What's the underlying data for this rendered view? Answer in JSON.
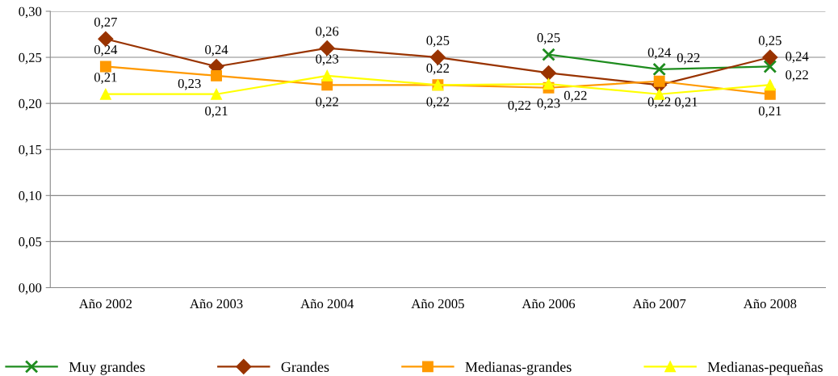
{
  "chart_data": {
    "type": "line",
    "categories": [
      "Año 2002",
      "Año 2003",
      "Año 2004",
      "Año 2005",
      "Año 2006",
      "Año 2007",
      "Año 2008"
    ],
    "ylim": [
      0,
      0.3
    ],
    "yticks": [
      {
        "value": 0,
        "label": "0,00"
      },
      {
        "value": 0.05,
        "label": "0,05"
      },
      {
        "value": 0.1,
        "label": "0,10"
      },
      {
        "value": 0.15,
        "label": "0,15"
      },
      {
        "value": 0.2,
        "label": "0,20"
      },
      {
        "value": 0.25,
        "label": "0,25"
      },
      {
        "value": 0.3,
        "label": "0,30"
      }
    ],
    "grid": "y",
    "legend": "bottom",
    "line_style": "solid",
    "series": [
      {
        "name": "Muy grandes",
        "color": "#1e8c1e",
        "marker": "cross",
        "values": [
          null,
          null,
          null,
          null,
          0.253,
          0.237,
          0.24
        ],
        "value_labels": [
          null,
          null,
          null,
          null,
          "0,25",
          "0,24",
          "0,24"
        ]
      },
      {
        "name": "Grandes",
        "color": "#993300",
        "marker": "diamond",
        "values": [
          0.27,
          0.24,
          0.26,
          0.25,
          0.233,
          0.22,
          0.25
        ],
        "value_labels": [
          "0,27",
          "0,24",
          "0,26",
          "0,25",
          "0,23",
          "0,22",
          "0,25"
        ]
      },
      {
        "name": "Medianas-grandes",
        "color": "#ff9900",
        "marker": "square",
        "values": [
          0.24,
          0.23,
          0.22,
          0.22,
          0.217,
          0.224,
          0.21
        ],
        "value_labels": [
          "0,24",
          "0,23",
          "0,22",
          "0,22",
          "0,22",
          "0,22",
          "0,21"
        ]
      },
      {
        "name": "Medianas-pequeñas",
        "color": "#ffff00",
        "marker": "triangle",
        "values": [
          0.21,
          0.21,
          0.23,
          0.22,
          0.221,
          0.21,
          0.22
        ],
        "value_labels": [
          "0,21",
          "0,21",
          "0,23",
          "0,22",
          "0,22",
          "0,21",
          "0,22"
        ]
      }
    ]
  }
}
